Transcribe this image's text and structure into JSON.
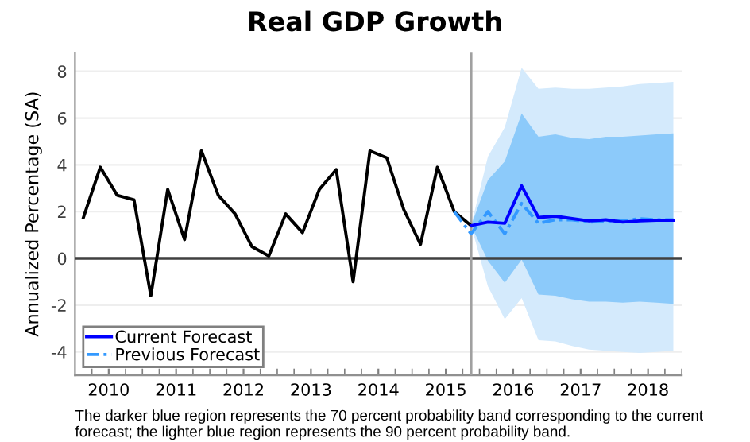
{
  "chart_data": {
    "type": "line",
    "title": "Real GDP Growth",
    "ylabel": "Annualized Percentage (SA)",
    "annotations": [
      "The darker blue region represents the 70 percent probability band corresponding to the current forecast; the lighter blue region represents the 90 percent probability band."
    ],
    "xlim": [
      2010,
      2019
    ],
    "ylim": [
      -5,
      8.8
    ],
    "yticks": [
      -4,
      -2,
      0,
      2,
      4,
      6,
      8
    ],
    "xticks": [
      {
        "value": 2010.5,
        "label": "2010"
      },
      {
        "value": 2011.5,
        "label": "2011"
      },
      {
        "value": 2012.5,
        "label": "2012"
      },
      {
        "value": 2013.5,
        "label": "2013"
      },
      {
        "value": 2014.5,
        "label": "2014"
      },
      {
        "value": 2015.5,
        "label": "2015"
      },
      {
        "value": 2016.5,
        "label": "2016"
      },
      {
        "value": 2017.5,
        "label": "2017"
      },
      {
        "value": 2018.5,
        "label": "2018"
      },
      {
        "value": 2010.25,
        "label": null
      },
      {
        "value": 2010.75,
        "label": null
      },
      {
        "value": 2011,
        "label": null
      },
      {
        "value": 2011.25,
        "label": null
      },
      {
        "value": 2011.75,
        "label": null
      },
      {
        "value": 2012,
        "label": null
      },
      {
        "value": 2012.25,
        "label": null
      },
      {
        "value": 2012.75,
        "label": null
      },
      {
        "value": 2013,
        "label": null
      },
      {
        "value": 2013.25,
        "label": null
      },
      {
        "value": 2013.75,
        "label": null
      },
      {
        "value": 2014,
        "label": null
      },
      {
        "value": 2014.25,
        "label": null
      },
      {
        "value": 2014.75,
        "label": null
      },
      {
        "value": 2015,
        "label": null
      },
      {
        "value": 2015.25,
        "label": null
      },
      {
        "value": 2015.75,
        "label": null
      },
      {
        "value": 2016,
        "label": null
      },
      {
        "value": 2016.25,
        "label": null
      },
      {
        "value": 2016.75,
        "label": null
      },
      {
        "value": 2017,
        "label": null
      },
      {
        "value": 2017.25,
        "label": null
      },
      {
        "value": 2017.75,
        "label": null
      },
      {
        "value": 2018,
        "label": null
      },
      {
        "value": 2018.25,
        "label": null
      },
      {
        "value": 2018.75,
        "label": null
      },
      {
        "value": 2019,
        "label": null
      }
    ],
    "grid": "y",
    "legend": "bottom left",
    "marker": "none",
    "ref_lines": [
      {
        "axis": "y",
        "value": 0,
        "color": "#404040"
      },
      {
        "axis": "x",
        "value": 2015.875,
        "color": "#a0a0a0"
      }
    ],
    "series": [
      {
        "color": "#d4eafc",
        "x": [
          2015.875,
          2016.125,
          2016.375,
          2016.625,
          2016.875,
          2017.125,
          2017.375,
          2017.625,
          2017.875,
          2018.125,
          2018.375,
          2018.625,
          2018.875
        ],
        "values": [
          null,
          null,
          null,
          null,
          null,
          null,
          null,
          null,
          null,
          null,
          null,
          null,
          null
        ],
        "upper": [
          1.4,
          4.35,
          5.6,
          8.15,
          7.25,
          7.3,
          7.25,
          7.25,
          7.3,
          7.35,
          7.45,
          7.5,
          7.55
        ],
        "lower": [
          1.4,
          -1.2,
          -2.6,
          -1.7,
          -3.5,
          -3.55,
          -3.75,
          -3.9,
          -3.95,
          -4.0,
          -4.05,
          -4.0,
          -3.95
        ]
      },
      {
        "color": "#8ccafa",
        "x": [
          2015.875,
          2016.125,
          2016.375,
          2016.625,
          2016.875,
          2017.125,
          2017.375,
          2017.625,
          2017.875,
          2018.125,
          2018.375,
          2018.625,
          2018.875
        ],
        "values": [
          null,
          null,
          null,
          null,
          null,
          null,
          null,
          null,
          null,
          null,
          null,
          null,
          null
        ],
        "upper": [
          1.4,
          3.35,
          4.15,
          6.2,
          5.2,
          5.3,
          5.15,
          5.1,
          5.2,
          5.2,
          5.25,
          5.3,
          5.35
        ],
        "lower": [
          1.4,
          -0.1,
          -1.05,
          -0.05,
          -1.55,
          -1.6,
          -1.75,
          -1.85,
          -1.85,
          -1.9,
          -1.85,
          -1.9,
          -1.95
        ]
      },
      {
        "color": "#000000",
        "x": [
          2010.125,
          2010.375,
          2010.625,
          2010.875,
          2011.125,
          2011.375,
          2011.625,
          2011.875,
          2012.125,
          2012.375,
          2012.625,
          2012.875,
          2013.125,
          2013.375,
          2013.625,
          2013.875,
          2014.125,
          2014.375,
          2014.625,
          2014.875,
          2015.125,
          2015.375,
          2015.625,
          2015.875
        ],
        "values": [
          1.75,
          3.9,
          2.7,
          2.5,
          -1.6,
          2.95,
          0.8,
          4.6,
          2.7,
          1.9,
          0.5,
          0.1,
          1.9,
          1.1,
          2.95,
          3.8,
          -1.0,
          4.6,
          4.3,
          2.1,
          0.6,
          3.9,
          2.0,
          1.4
        ]
      },
      {
        "name": "Previous Forecast",
        "color": "#3399ff",
        "line_style": "dashed",
        "x": [
          2015.625,
          2015.875,
          2016.125,
          2016.375,
          2016.625,
          2016.875,
          2017.125,
          2017.375,
          2017.625,
          2017.875,
          2018.125,
          2018.375,
          2018.625,
          2018.875
        ],
        "values": [
          2.0,
          1.05,
          2.0,
          1.05,
          2.35,
          1.5,
          1.65,
          1.65,
          1.55,
          1.6,
          1.6,
          1.7,
          1.65,
          1.65
        ]
      },
      {
        "name": "Current Forecast",
        "color": "#0000ff",
        "x": [
          2015.875,
          2016.125,
          2016.375,
          2016.625,
          2016.875,
          2017.125,
          2017.375,
          2017.625,
          2017.875,
          2018.125,
          2018.375,
          2018.625,
          2018.875
        ],
        "values": [
          1.4,
          1.55,
          1.5,
          3.1,
          1.75,
          1.8,
          1.7,
          1.6,
          1.65,
          1.55,
          1.6,
          1.63,
          1.63
        ]
      }
    ]
  }
}
